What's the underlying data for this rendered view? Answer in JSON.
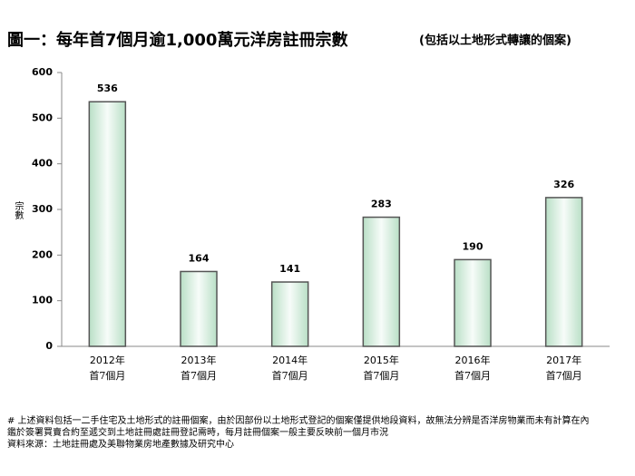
{
  "chart_data": {
    "type": "bar",
    "title": "圖一：每年首7個月逾1,000萬元洋房註冊宗數",
    "subtitle": "(包括以土地形式轉讓的個案)",
    "y_label": "宗數",
    "categories": [
      "2012年",
      "2013年",
      "2014年",
      "2015年",
      "2016年",
      "2017年"
    ],
    "category_sublabels": [
      "首7個月",
      "首7個月",
      "首7個月",
      "首7個月",
      "首7個月",
      "首7個月"
    ],
    "values": [
      536,
      164,
      141,
      283,
      190,
      326
    ],
    "color": "#e8f6ee",
    "ylim": [
      0,
      600
    ],
    "yticks": [
      0,
      100,
      200,
      300,
      400,
      500,
      600
    ],
    "grid": false,
    "notes": [
      "# 上述資料包括一二手住宅及土地形式的註冊個案，由於因部份以土地形式登記的個案僅提供地段資料，故無法分辨是否洋房物業而未有計算在內",
      "鑑於簽署買賣合約至遞交到土地註冊處註冊登記需時，每月註冊個案一般主要反映前一個月市況",
      "資料來源：土地註冊處及美聯物業房地產數據及研究中心"
    ]
  }
}
